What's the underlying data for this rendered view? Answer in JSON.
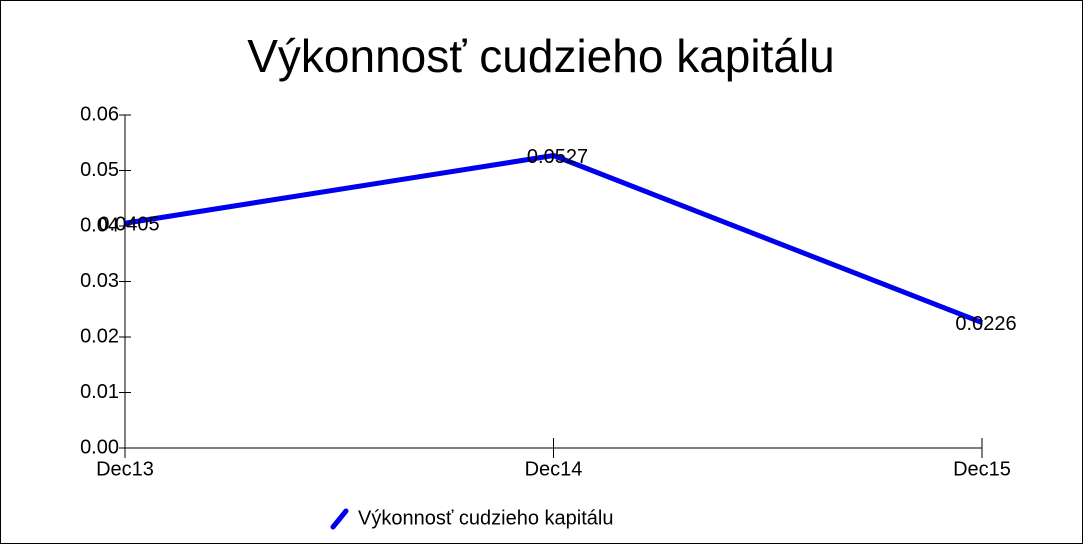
{
  "chart_data": {
    "type": "line",
    "title": "Výkonnosť cudzieho kapitálu",
    "categories": [
      "Dec13",
      "Dec14",
      "Dec15"
    ],
    "series": [
      {
        "name": "Výkonnosť cudzieho kapitálu",
        "color": "#0000ee",
        "values": [
          0.0405,
          0.0527,
          0.0226
        ]
      }
    ],
    "ylim": [
      0,
      0.06
    ],
    "yticks": [
      {
        "value": 0,
        "label": "0.00"
      },
      0.01,
      0.02,
      0.03,
      0.04,
      0.05,
      0.06
    ],
    "grid": false,
    "legend": "bottom"
  }
}
